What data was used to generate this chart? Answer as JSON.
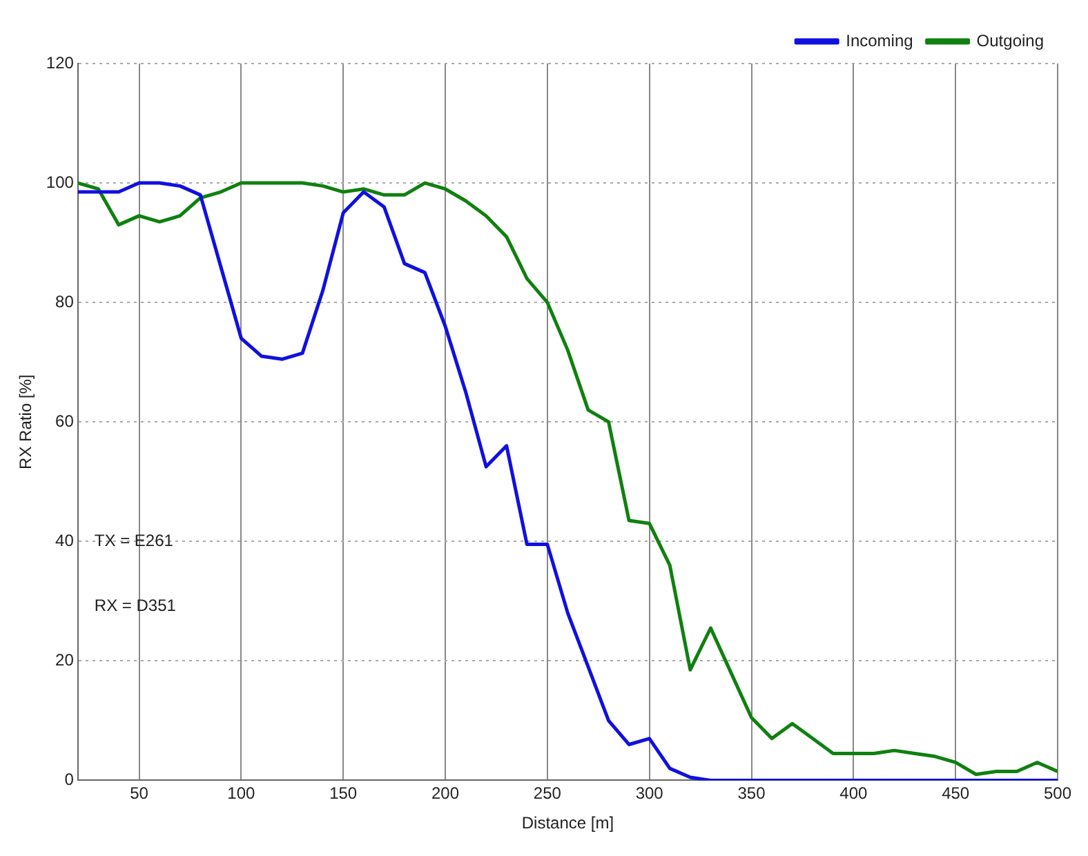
{
  "chart_data": {
    "type": "line",
    "xlabel": "Distance [m]",
    "ylabel": "RX Ratio [%]",
    "x": [
      20,
      30,
      40,
      50,
      60,
      70,
      80,
      90,
      100,
      110,
      120,
      130,
      140,
      150,
      160,
      170,
      180,
      190,
      200,
      210,
      220,
      230,
      240,
      250,
      260,
      270,
      280,
      290,
      300,
      310,
      320,
      330,
      340,
      350,
      360,
      370,
      380,
      390,
      400,
      410,
      420,
      430,
      440,
      450,
      460,
      470,
      480,
      490,
      500
    ],
    "series": [
      {
        "name": "Incoming",
        "color": "#1010e0",
        "values": [
          98.5,
          98.5,
          98.5,
          100,
          100,
          99.5,
          98,
          86,
          74,
          71,
          70.5,
          71.5,
          82,
          95,
          98.5,
          96,
          86.5,
          85,
          76,
          65,
          52.5,
          56,
          39.5,
          39.5,
          28,
          19,
          10,
          6,
          7,
          2,
          0.5,
          0,
          0,
          0,
          0,
          0,
          0,
          0,
          0,
          0,
          0,
          0,
          0,
          0,
          0,
          0,
          0,
          0,
          0
        ]
      },
      {
        "name": "Outgoing",
        "color": "#108010",
        "values": [
          100,
          99,
          93,
          94.5,
          93.5,
          94.5,
          97.5,
          98.5,
          100,
          100,
          100,
          100,
          99.5,
          98.5,
          99,
          98,
          98,
          100,
          99,
          97,
          94.5,
          91,
          84,
          80,
          72,
          62,
          60,
          43.5,
          43,
          36,
          18.5,
          25.5,
          18,
          10.5,
          7,
          9.5,
          7,
          4.5,
          4.5,
          4.5,
          5,
          4.5,
          4,
          3,
          1,
          1.5,
          1.5,
          3,
          1.5
        ]
      }
    ],
    "xlim": [
      20,
      500
    ],
    "xticks": [
      50,
      100,
      150,
      200,
      250,
      300,
      350,
      400,
      450,
      500
    ],
    "ylim": [
      0,
      120
    ],
    "yticks": [
      0,
      20,
      40,
      60,
      80,
      100,
      120
    ],
    "grid": true,
    "legend": "top right",
    "marker": "none",
    "line_style": "solid",
    "annotations": [
      "TX = E261",
      "RX = D351"
    ]
  }
}
